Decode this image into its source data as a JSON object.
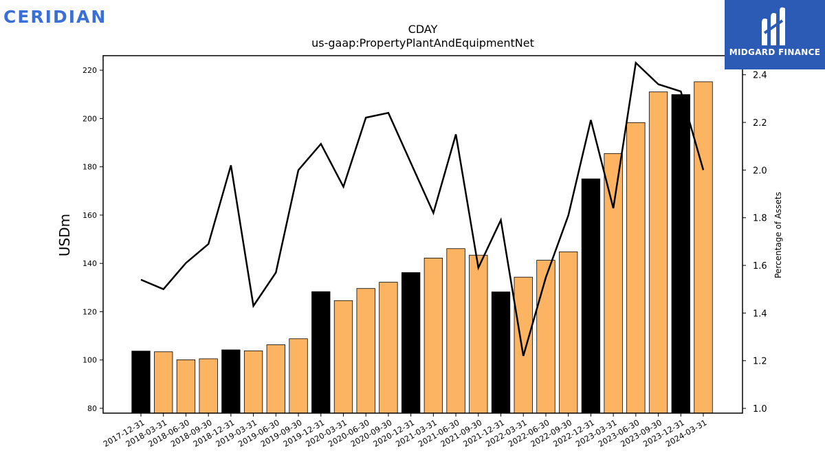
{
  "branding": {
    "left_logo": "CERIDIAN",
    "right_logo": "MIDGARD FINANCE",
    "right_logo_icon": "midgard-m-icon",
    "left_color": "#3a6fd8",
    "right_bg": "#2b5bb5"
  },
  "chart_data": {
    "type": "bar",
    "title": "CDAY",
    "subtitle": "us-gaap:PropertyPlantAndEquipmentNet",
    "ylabel": "USDm",
    "y2label": "Percentage of Assets",
    "ylim": [
      78,
      226
    ],
    "y2lim": [
      0.98,
      2.48
    ],
    "yticks": [
      80,
      100,
      120,
      140,
      160,
      180,
      200,
      220
    ],
    "y2ticks": [
      "1.0",
      "1.2",
      "1.4",
      "1.6",
      "1.8",
      "2.0",
      "2.2",
      "2.4"
    ],
    "categories": [
      "2017-12-31",
      "2018-03-31",
      "2018-06-30",
      "2018-09-30",
      "2018-12-31",
      "2019-03-31",
      "2019-06-30",
      "2019-09-30",
      "2019-12-31",
      "2020-03-31",
      "2020-06-30",
      "2020-09-30",
      "2020-12-31",
      "2021-03-31",
      "2021-06-30",
      "2021-09-30",
      "2021-12-31",
      "2022-03-31",
      "2022-06-30",
      "2022-09-30",
      "2022-12-31",
      "2023-03-31",
      "2023-06-30",
      "2023-09-30",
      "2023-12-31",
      "2024-03-31"
    ],
    "series": [
      {
        "type": "bar",
        "values": [
          103.7,
          103.4,
          100.1,
          100.5,
          104.2,
          103.8,
          106.3,
          108.8,
          128.3,
          124.6,
          129.6,
          132.2,
          136.2,
          142.2,
          146.1,
          143.4,
          128.2,
          134.3,
          141.3,
          144.8,
          175.0,
          185.5,
          198.3,
          211.0,
          209.9,
          215.2
        ],
        "colors": [
          "#000000",
          "#fdb462",
          "#fdb462",
          "#fdb462",
          "#000000",
          "#fdb462",
          "#fdb462",
          "#fdb462",
          "#000000",
          "#fdb462",
          "#fdb462",
          "#fdb462",
          "#000000",
          "#fdb462",
          "#fdb462",
          "#fdb462",
          "#000000",
          "#fdb462",
          "#fdb462",
          "#fdb462",
          "#000000",
          "#fdb462",
          "#fdb462",
          "#fdb462",
          "#000000",
          "#fdb462"
        ]
      },
      {
        "type": "line",
        "axis": "right",
        "color": "#000000",
        "values": [
          1.54,
          1.5,
          1.61,
          1.69,
          2.02,
          1.43,
          1.57,
          2.0,
          2.11,
          1.93,
          2.22,
          2.24,
          2.03,
          1.82,
          2.15,
          1.59,
          1.79,
          1.22,
          1.55,
          1.81,
          2.21,
          1.84,
          2.45,
          2.36,
          2.33,
          2.0
        ]
      }
    ],
    "grid": false
  }
}
